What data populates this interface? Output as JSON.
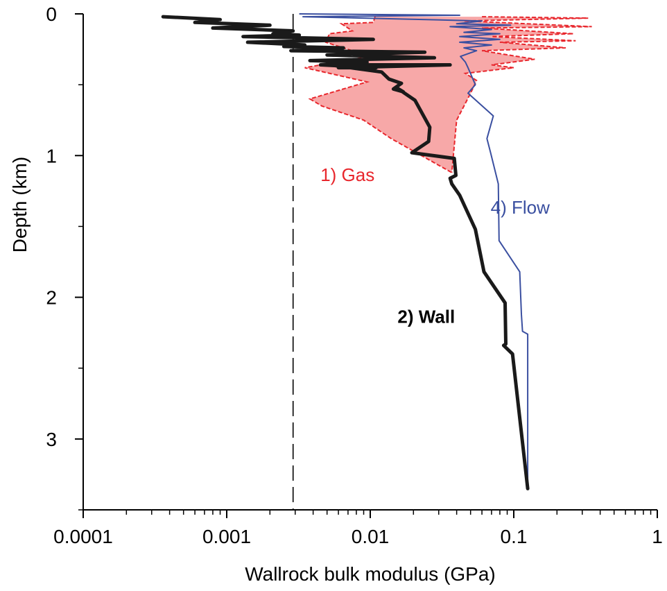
{
  "chart_data": {
    "type": "line",
    "xlabel": "Wallrock bulk modulus (GPa)",
    "ylabel": "Depth (km)",
    "xscale": "log",
    "xlim": [
      0.0001,
      1
    ],
    "ylim": [
      3.5,
      0
    ],
    "y_inverted": true,
    "xticks": [
      {
        "value": 0.0001,
        "label": "0.0001"
      },
      {
        "value": 0.001,
        "label": "0.001"
      },
      {
        "value": 0.01,
        "label": "0.01"
      },
      {
        "value": 0.1,
        "label": "0.1"
      },
      {
        "value": 1,
        "label": "1"
      }
    ],
    "yticks": [
      {
        "value": 0,
        "label": "0"
      },
      {
        "value": 1,
        "label": "1"
      },
      {
        "value": 2,
        "label": "2"
      },
      {
        "value": 3,
        "label": "3"
      }
    ],
    "yminor": [
      0.5,
      1.5,
      2.5,
      3.5
    ],
    "reference_line": {
      "x": 0.0029,
      "style": "dashed",
      "color": "#000000"
    },
    "annotations": [
      {
        "text": "1) Gas",
        "series": "gas",
        "x": 0.0045,
        "depth": 1.18,
        "color": "#e8262c",
        "bold": false
      },
      {
        "text": "2) Wall",
        "series": "wall",
        "x": 0.0155,
        "depth": 2.18,
        "color": "#000000",
        "bold": true
      },
      {
        "text": "4) Flow",
        "series": "flow",
        "x": 0.069,
        "depth": 1.41,
        "color": "#3a4fa0",
        "bold": false
      }
    ],
    "series": [
      {
        "key": "gas",
        "style": "shaded-band-dashed",
        "color": "#e8262c",
        "fill": "#f7a8a8",
        "lower": {
          "x": [
            0.0108,
            0.0105,
            0.0063,
            0.007,
            0.0075,
            0.0052,
            0.0049,
            0.0099,
            0.0035,
            0.0095,
            0.0038,
            0.0046,
            0.009,
            0.014,
            0.037
          ],
          "y": [
            0.02,
            0.06,
            0.07,
            0.1,
            0.12,
            0.14,
            0.2,
            0.3,
            0.38,
            0.48,
            0.6,
            0.65,
            0.75,
            0.88,
            1.12
          ]
        },
        "upper": {
          "x": [
            0.06,
            0.33,
            0.045,
            0.35,
            0.06,
            0.26,
            0.07,
            0.27,
            0.08,
            0.23,
            0.06,
            0.14,
            0.07,
            0.1,
            0.046,
            0.055,
            0.05,
            0.04,
            0.037
          ],
          "y": [
            0.02,
            0.03,
            0.05,
            0.09,
            0.1,
            0.14,
            0.16,
            0.19,
            0.2,
            0.24,
            0.26,
            0.32,
            0.36,
            0.38,
            0.42,
            0.47,
            0.56,
            0.75,
            1.12
          ]
        },
        "depth_spikes": {
          "x": [
            0.015,
            0.024,
            0.026,
            0.045,
            0.06,
            0.055,
            0.012,
            0.04,
            0.032,
            0.022,
            0.02,
            0.025,
            0.015,
            0.024,
            0.026,
            0.045,
            0.06,
            0.055,
            0.012,
            0.04,
            0.032,
            0.022,
            0.02,
            0.025
          ],
          "y": [
            0.12,
            0.14,
            0.16,
            0.18,
            0.2,
            0.24,
            0.26,
            0.28,
            0.3,
            0.34,
            0.36,
            0.4,
            0.12,
            0.14,
            0.16,
            0.18,
            0.2,
            0.24,
            0.26,
            0.28,
            0.3,
            0.34,
            0.36,
            0.4
          ]
        }
      },
      {
        "key": "wall",
        "style": "thick",
        "color": "#1a1a1a",
        "x": [
          0.00036,
          0.0009,
          0.0006,
          0.002,
          0.0008,
          0.0029,
          0.0021,
          0.0032,
          0.0013,
          0.0105,
          0.0014,
          0.0035,
          0.0025,
          0.0065,
          0.0028,
          0.024,
          0.005,
          0.028,
          0.0038,
          0.0095,
          0.0045,
          0.011,
          0.006,
          0.036,
          0.0052,
          0.012,
          0.0135,
          0.0165,
          0.0145,
          0.017,
          0.0152,
          0.0205,
          0.026,
          0.0255,
          0.0195,
          0.0385,
          0.0395,
          0.036,
          0.037,
          0.042,
          0.054,
          0.062,
          0.087,
          0.088,
          0.085,
          0.098,
          0.125
        ],
        "y": [
          0.02,
          0.04,
          0.06,
          0.08,
          0.1,
          0.12,
          0.14,
          0.15,
          0.16,
          0.18,
          0.2,
          0.22,
          0.23,
          0.24,
          0.26,
          0.27,
          0.29,
          0.31,
          0.33,
          0.34,
          0.36,
          0.38,
          0.38,
          0.36,
          0.36,
          0.41,
          0.46,
          0.49,
          0.53,
          0.55,
          0.52,
          0.61,
          0.8,
          0.9,
          0.98,
          1.02,
          1.14,
          1.16,
          1.2,
          1.28,
          1.52,
          1.82,
          2.04,
          2.33,
          2.34,
          2.4,
          3.35
        ]
      },
      {
        "key": "flow",
        "style": "thin",
        "color": "#3a4fa0",
        "x": [
          0.0032,
          0.042,
          0.0034,
          0.06,
          0.04,
          0.095,
          0.036,
          0.07,
          0.045,
          0.08,
          0.042,
          0.08,
          0.042,
          0.07,
          0.045,
          0.055,
          0.0425,
          0.046,
          0.048,
          0.054,
          0.048,
          0.072,
          0.065,
          0.069,
          0.078,
          0.079,
          0.11,
          0.113,
          0.115,
          0.125,
          0.125
        ],
        "y": [
          0.0,
          0.01,
          0.02,
          0.05,
          0.07,
          0.08,
          0.09,
          0.11,
          0.13,
          0.14,
          0.16,
          0.18,
          0.2,
          0.22,
          0.24,
          0.26,
          0.3,
          0.34,
          0.38,
          0.5,
          0.56,
          0.72,
          0.88,
          0.98,
          1.2,
          1.6,
          1.82,
          2.12,
          2.24,
          2.26,
          3.35
        ]
      }
    ]
  }
}
